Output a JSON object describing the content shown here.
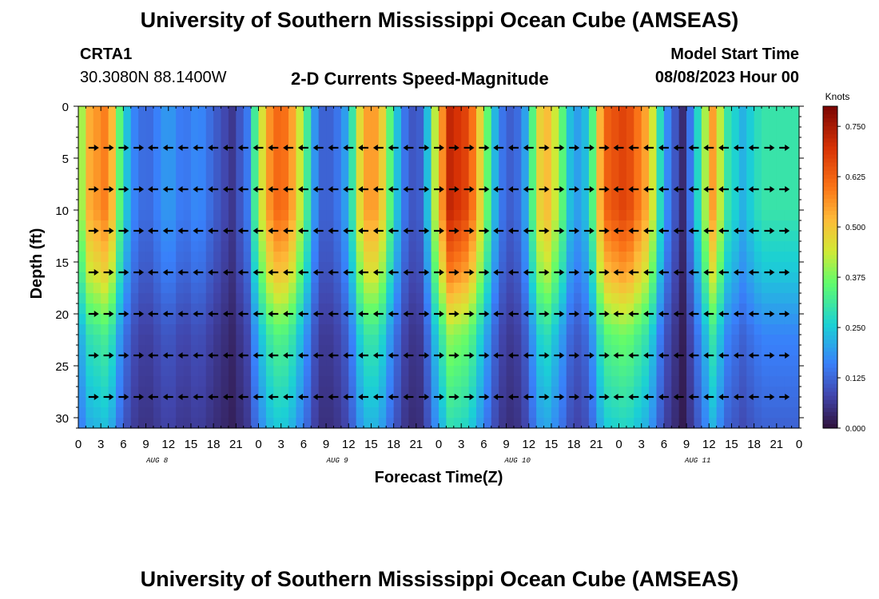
{
  "page": {
    "title": "University of Southern Mississippi Ocean Cube (AMSEAS)",
    "footer_title": "University of Southern Mississippi Ocean Cube (AMSEAS)",
    "station_id": "CRTA1",
    "station_coords": "30.3080N  88.1400W",
    "plot_subtitle": "2-D Currents Speed-Magnitude",
    "model_start_label": "Model Start Time",
    "model_start_value": "08/08/2023 Hour 00"
  },
  "chart_data": {
    "type": "heatmap",
    "title": "2-D Currents Speed-Magnitude",
    "xlabel": "Forecast Time(Z)",
    "ylabel": "Depth (ft)",
    "x_hours": [
      0,
      96
    ],
    "x_tick_labels": [
      "0",
      "3",
      "6",
      "9",
      "12",
      "15",
      "18",
      "21",
      "0",
      "3",
      "6",
      "9",
      "12",
      "15",
      "18",
      "21",
      "0",
      "3",
      "6",
      "9",
      "12",
      "15",
      "18",
      "21",
      "0",
      "3",
      "6",
      "9",
      "12",
      "15",
      "18",
      "21",
      "0"
    ],
    "date_labels": [
      {
        "hour": 10.5,
        "text": "AUG 8"
      },
      {
        "hour": 34.5,
        "text": "AUG 9"
      },
      {
        "hour": 58.5,
        "text": "AUG 10"
      },
      {
        "hour": 82.5,
        "text": "AUG 11"
      }
    ],
    "y_range": [
      0,
      31
    ],
    "y_ticks": [
      0,
      5,
      10,
      15,
      20,
      25,
      30
    ],
    "colorbar": {
      "unit": "Knots",
      "range": [
        0.0,
        0.8
      ],
      "tick_values": [
        0.0,
        0.125,
        0.25,
        0.375,
        0.5,
        0.625,
        0.75
      ],
      "tick_labels": [
        "0.000",
        "0.125",
        "0.250",
        "0.375",
        "0.500",
        "0.625",
        "0.750"
      ]
    },
    "speed_by_hour": [
      {
        "hour": 0.0,
        "speed": 0.3
      },
      {
        "hour": 1.0,
        "speed": 0.52
      },
      {
        "hour": 4.0,
        "speed": 0.6
      },
      {
        "hour": 5.5,
        "speed": 0.35
      },
      {
        "hour": 7.0,
        "speed": 0.18
      },
      {
        "hour": 9.0,
        "speed": 0.12
      },
      {
        "hour": 12.0,
        "speed": 0.2
      },
      {
        "hour": 14.0,
        "speed": 0.14
      },
      {
        "hour": 16.0,
        "speed": 0.18
      },
      {
        "hour": 18.0,
        "speed": 0.12
      },
      {
        "hour": 20.5,
        "speed": 0.06
      },
      {
        "hour": 22.5,
        "speed": 0.15
      },
      {
        "hour": 24.0,
        "speed": 0.4
      },
      {
        "hour": 26.0,
        "speed": 0.62
      },
      {
        "hour": 28.0,
        "speed": 0.6
      },
      {
        "hour": 30.0,
        "speed": 0.38
      },
      {
        "hour": 32.0,
        "speed": 0.12
      },
      {
        "hour": 34.0,
        "speed": 0.12
      },
      {
        "hour": 36.0,
        "speed": 0.22
      },
      {
        "hour": 38.0,
        "speed": 0.55
      },
      {
        "hour": 40.0,
        "speed": 0.55
      },
      {
        "hour": 42.0,
        "speed": 0.28
      },
      {
        "hour": 44.0,
        "speed": 0.1
      },
      {
        "hour": 46.0,
        "speed": 0.12
      },
      {
        "hour": 47.0,
        "speed": 0.35
      },
      {
        "hour": 49.5,
        "speed": 0.72
      },
      {
        "hour": 52.0,
        "speed": 0.66
      },
      {
        "hour": 54.0,
        "speed": 0.42
      },
      {
        "hour": 56.0,
        "speed": 0.16
      },
      {
        "hour": 58.0,
        "speed": 0.1
      },
      {
        "hour": 59.5,
        "speed": 0.2
      },
      {
        "hour": 62.0,
        "speed": 0.55
      },
      {
        "hour": 64.0,
        "speed": 0.4
      },
      {
        "hour": 66.0,
        "speed": 0.18
      },
      {
        "hour": 68.0,
        "speed": 0.25
      },
      {
        "hour": 70.0,
        "speed": 0.62
      },
      {
        "hour": 73.0,
        "speed": 0.68
      },
      {
        "hour": 76.0,
        "speed": 0.52
      },
      {
        "hour": 78.0,
        "speed": 0.2
      },
      {
        "hour": 80.5,
        "speed": 0.04
      },
      {
        "hour": 82.0,
        "speed": 0.2
      },
      {
        "hour": 84.5,
        "speed": 0.55
      },
      {
        "hour": 86.5,
        "speed": 0.3
      },
      {
        "hour": 88.5,
        "speed": 0.22
      },
      {
        "hour": 91.0,
        "speed": 0.3
      },
      {
        "hour": 96.0,
        "speed": 0.3
      }
    ],
    "depth_factor": [
      {
        "depth": 0,
        "factor": 1.0
      },
      {
        "depth": 10,
        "factor": 1.0
      },
      {
        "depth": 16,
        "factor": 0.82
      },
      {
        "depth": 22,
        "factor": 0.55
      },
      {
        "depth": 31,
        "factor": 0.4
      }
    ],
    "vector_depths": [
      4,
      8,
      12,
      16,
      20,
      24,
      28
    ],
    "vector_hours_step": 2.0,
    "vector_default_direction": "west",
    "vector_east_hours": [
      [
        0,
        8
      ],
      [
        46,
        54
      ],
      [
        62,
        70
      ],
      [
        92,
        96
      ]
    ]
  }
}
